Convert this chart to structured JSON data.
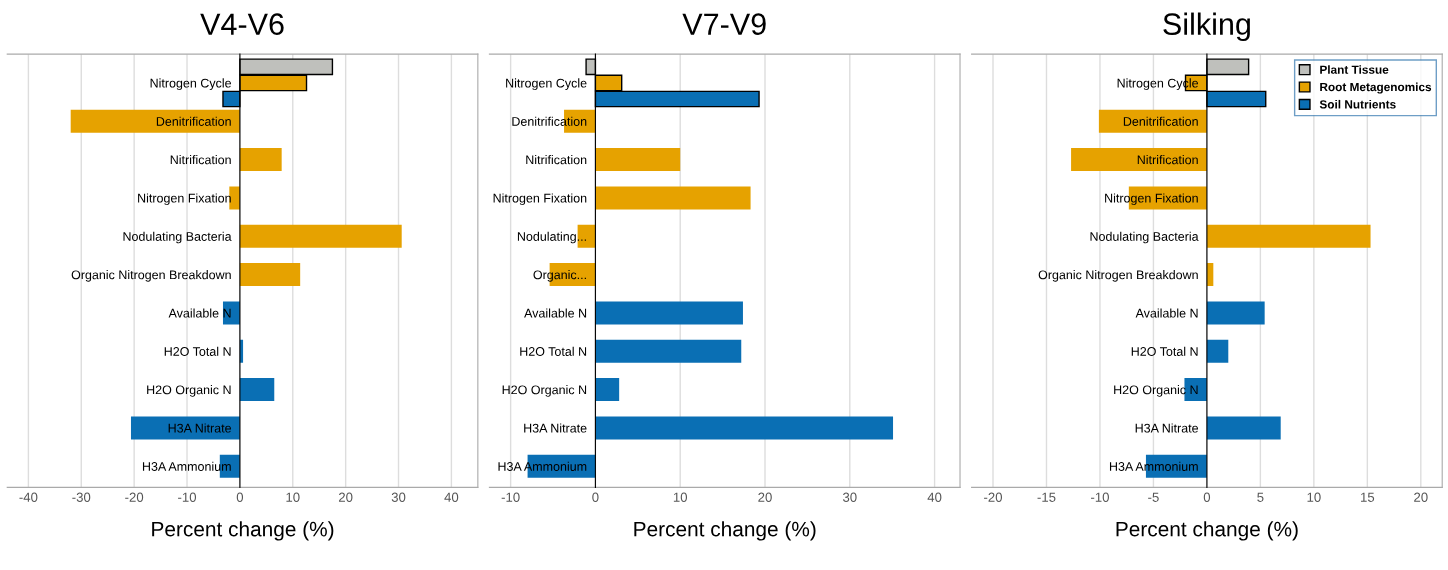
{
  "chart_data": [
    {
      "type": "bar",
      "orientation": "horizontal",
      "title": "V4-V6",
      "xlabel": "Percent change (%)",
      "grid": "x",
      "categories": [
        "Nitrogen Cycle",
        "Denitrification",
        "Nitrification",
        "Nitrogen Fixation",
        "Nodulating Bacteria",
        "Organic Nitrogen Breakdown",
        "Available N",
        "H2O Total N",
        "H2O Organic N",
        "H3A Nitrate",
        "H3A Ammonium"
      ],
      "xlim": [
        -44,
        45
      ],
      "xticks": [
        -40,
        -30,
        -20,
        -10,
        0,
        10,
        20,
        30,
        40
      ],
      "series": [
        {
          "color": "#bfc0bc",
          "values": [
            17.5,
            null,
            null,
            null,
            null,
            null,
            null,
            null,
            null,
            null,
            null
          ]
        },
        {
          "color": "#e6a200",
          "values": [
            12.6,
            -32,
            7.9,
            -2,
            30.6,
            11.4,
            null,
            null,
            null,
            null,
            null
          ]
        },
        {
          "color": "#0a6fb4",
          "values": [
            -3.2,
            null,
            null,
            null,
            null,
            null,
            -3.2,
            0.6,
            6.5,
            -20.6,
            -3.8
          ]
        }
      ]
    },
    {
      "type": "bar",
      "orientation": "horizontal",
      "title": "V7-V9",
      "xlabel": "Percent change (%)",
      "grid": "x",
      "categories": [
        "Nitrogen Cycle",
        "Denitrification",
        "Nitrification",
        "Nitrogen Fixation",
        "Nodulating...",
        "Organic...",
        "Available N",
        "H2O Total N",
        "H2O Organic N",
        "H3A Nitrate",
        "H3A Ammonium"
      ],
      "xlim": [
        -12.5,
        43
      ],
      "xticks": [
        -10,
        0,
        10,
        20,
        30,
        40
      ],
      "series": [
        {
          "color": "#bfc0bc",
          "values": [
            -1.1,
            null,
            null,
            null,
            null,
            null,
            null,
            null,
            null,
            null,
            null
          ]
        },
        {
          "color": "#e6a200",
          "values": [
            3.1,
            -3.7,
            10.0,
            18.3,
            -2.1,
            -5.4,
            null,
            null,
            null,
            null,
            null
          ]
        },
        {
          "color": "#0a6fb4",
          "values": [
            19.3,
            null,
            null,
            null,
            null,
            null,
            17.4,
            17.2,
            2.8,
            35.1,
            -8.0
          ]
        }
      ]
    },
    {
      "type": "bar",
      "orientation": "horizontal",
      "title": "Silking",
      "xlabel": "Percent change (%)",
      "grid": "x",
      "legend": "top right",
      "categories": [
        "Nitrogen Cycle",
        "Denitrification",
        "Nitrification",
        "Nitrogen Fixation",
        "Nodulating Bacteria",
        "Organic Nitrogen Breakdown",
        "Available N",
        "H2O Total N",
        "H2O Organic N",
        "H3A Nitrate",
        "H3A Ammonium"
      ],
      "xlim": [
        -22,
        22
      ],
      "xticks": [
        -20,
        -15,
        -10,
        -5,
        0,
        5,
        10,
        15,
        20
      ],
      "series": [
        {
          "name": "Plant Tissue",
          "color": "#bfc0bc",
          "values": [
            3.9,
            null,
            null,
            null,
            null,
            null,
            null,
            null,
            null,
            null,
            null
          ]
        },
        {
          "name": "Root Metagenomics",
          "color": "#e6a200",
          "values": [
            -2.0,
            -10.1,
            -12.7,
            -7.3,
            15.3,
            0.6,
            null,
            null,
            null,
            null,
            null
          ]
        },
        {
          "name": "Soil Nutrients",
          "color": "#0a6fb4",
          "values": [
            5.5,
            null,
            null,
            null,
            null,
            null,
            5.4,
            2.0,
            -2.1,
            6.9,
            -5.7
          ]
        }
      ]
    }
  ]
}
